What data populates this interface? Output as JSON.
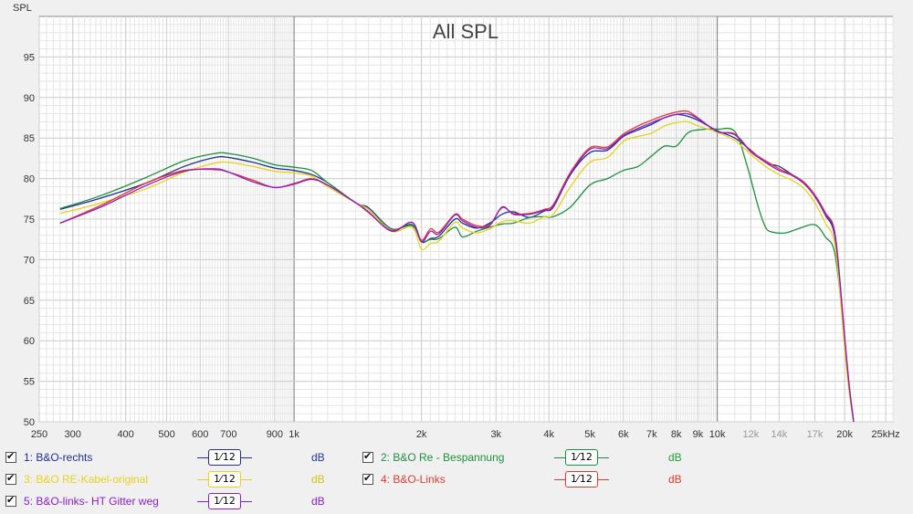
{
  "chart_data": {
    "type": "line",
    "title": "All SPL",
    "ylabel": "SPL",
    "xlabel": "",
    "x_scale": "log",
    "xlim": [
      250,
      26000
    ],
    "ylim": [
      50,
      100
    ],
    "x_ticks": [
      {
        "v": 250,
        "label": "250",
        "minor": false
      },
      {
        "v": 300,
        "label": "300",
        "minor": false
      },
      {
        "v": 400,
        "label": "400",
        "minor": false
      },
      {
        "v": 500,
        "label": "500",
        "minor": false
      },
      {
        "v": 600,
        "label": "600",
        "minor": false
      },
      {
        "v": 700,
        "label": "700",
        "minor": false
      },
      {
        "v": 900,
        "label": "900",
        "minor": false
      },
      {
        "v": 1000,
        "label": "1k",
        "minor": false
      },
      {
        "v": 2000,
        "label": "2k",
        "minor": false
      },
      {
        "v": 3000,
        "label": "3k",
        "minor": false
      },
      {
        "v": 4000,
        "label": "4k",
        "minor": false
      },
      {
        "v": 5000,
        "label": "5k",
        "minor": false
      },
      {
        "v": 6000,
        "label": "6k",
        "minor": false
      },
      {
        "v": 7000,
        "label": "7k",
        "minor": false
      },
      {
        "v": 8000,
        "label": "8k",
        "minor": false
      },
      {
        "v": 9000,
        "label": "9k",
        "minor": false
      },
      {
        "v": 10000,
        "label": "10k",
        "minor": false
      },
      {
        "v": 12000,
        "label": "12k",
        "minor": true
      },
      {
        "v": 14000,
        "label": "14k",
        "minor": true
      },
      {
        "v": 17000,
        "label": "17k",
        "minor": true
      },
      {
        "v": 20000,
        "label": "20k",
        "minor": false
      },
      {
        "v": 25000,
        "label": "25kHz",
        "minor": false
      }
    ],
    "y_ticks": [
      50,
      55,
      60,
      65,
      70,
      75,
      80,
      85,
      90,
      95
    ],
    "grid": true,
    "series": [
      {
        "name": "1: B&O-rechts",
        "color": "#1f2f8f",
        "x": [
          280,
          350,
          450,
          550,
          650,
          700,
          800,
          900,
          1000,
          1100,
          1200,
          1400,
          1500,
          1700,
          1900,
          2000,
          2100,
          2200,
          2400,
          2500,
          2700,
          2900,
          3100,
          3300,
          3600,
          3900,
          4100,
          4500,
          5000,
          5500,
          6000,
          6500,
          7000,
          7500,
          8000,
          8500,
          9000,
          10000,
          11000,
          12000,
          13000,
          14000,
          15000,
          16000,
          17000,
          18000,
          19000,
          20000,
          20500,
          21000
        ],
        "y": [
          76.2,
          77.6,
          79.5,
          81.5,
          82.6,
          82.6,
          82.0,
          81.3,
          81.0,
          80.5,
          79.5,
          77.0,
          76.4,
          73.8,
          74.3,
          72.2,
          72.6,
          72.9,
          75.0,
          74.5,
          73.9,
          74.5,
          75.6,
          75.9,
          75.2,
          76.0,
          76.5,
          80.5,
          83.2,
          83.5,
          85.2,
          86.0,
          86.7,
          87.5,
          87.9,
          87.7,
          87.2,
          85.9,
          85.0,
          83.5,
          82.0,
          81.5,
          80.5,
          79.5,
          77.8,
          75.5,
          72.5,
          60.0,
          54.0,
          50.0
        ]
      },
      {
        "name": "2: B&O Re - Bespannung",
        "color": "#1f8f3f",
        "x": [
          280,
          350,
          450,
          550,
          650,
          700,
          800,
          900,
          1000,
          1100,
          1200,
          1400,
          1500,
          1700,
          1900,
          2000,
          2100,
          2200,
          2400,
          2500,
          2700,
          2900,
          3100,
          3300,
          3600,
          3900,
          4100,
          4500,
          5000,
          5500,
          6000,
          6500,
          7000,
          7500,
          8000,
          8500,
          9000,
          10000,
          11000,
          11700,
          12500,
          13000,
          13500,
          14500,
          15500,
          17000,
          18000,
          19000,
          20000,
          20500,
          21000
        ],
        "y": [
          76.3,
          77.9,
          80.2,
          82.2,
          83.1,
          83.1,
          82.5,
          81.7,
          81.4,
          81.0,
          79.5,
          77.0,
          76.2,
          73.8,
          74.2,
          72.3,
          72.5,
          72.6,
          74.0,
          72.8,
          73.5,
          74.0,
          74.4,
          74.5,
          75.2,
          75.3,
          75.3,
          76.5,
          79.2,
          80.0,
          81.0,
          81.5,
          82.8,
          84.0,
          84.0,
          85.6,
          86.0,
          86.1,
          85.8,
          82.0,
          76.5,
          74.0,
          73.4,
          73.3,
          73.8,
          74.3,
          72.8,
          70.5,
          60.0,
          54.0,
          50.0
        ]
      },
      {
        "name": "3: B&O RE-Kabel-original",
        "color": "#e8d21a",
        "x": [
          280,
          350,
          450,
          550,
          650,
          700,
          800,
          900,
          1000,
          1100,
          1200,
          1400,
          1500,
          1700,
          1900,
          2000,
          2100,
          2200,
          2400,
          2500,
          2700,
          2900,
          3100,
          3300,
          3600,
          3900,
          4100,
          4500,
          5000,
          5500,
          6000,
          6500,
          7000,
          7500,
          8000,
          8500,
          9000,
          10000,
          11000,
          12000,
          13000,
          14000,
          15000,
          16000,
          17000,
          18000,
          19000,
          20000,
          20500,
          21000
        ],
        "y": [
          75.7,
          77.0,
          78.8,
          80.8,
          81.9,
          82.0,
          81.5,
          80.9,
          80.7,
          80.3,
          79.0,
          77.0,
          76.2,
          73.5,
          74.0,
          71.3,
          72.0,
          72.3,
          74.6,
          73.9,
          73.3,
          73.8,
          74.7,
          74.8,
          74.5,
          75.3,
          75.6,
          79.0,
          82.0,
          82.6,
          84.6,
          85.2,
          85.6,
          86.5,
          86.9,
          87.0,
          86.5,
          85.7,
          84.7,
          83.0,
          81.5,
          80.5,
          79.8,
          78.8,
          77.0,
          74.5,
          71.5,
          59.0,
          53.5,
          50.0
        ]
      },
      {
        "name": "4: B&O-Links",
        "color": "#e03a2f",
        "x": [
          280,
          350,
          450,
          550,
          650,
          700,
          800,
          900,
          1000,
          1100,
          1200,
          1400,
          1500,
          1700,
          1900,
          2000,
          2100,
          2200,
          2400,
          2500,
          2700,
          2900,
          3100,
          3300,
          3600,
          3900,
          4100,
          4500,
          5000,
          5500,
          6000,
          6500,
          7000,
          7500,
          8000,
          8500,
          9000,
          10000,
          11000,
          12000,
          13000,
          14000,
          15000,
          16000,
          17000,
          18000,
          19000,
          20000,
          20500,
          21000
        ],
        "y": [
          74.5,
          76.7,
          79.5,
          81.0,
          81.1,
          80.8,
          79.8,
          78.9,
          79.4,
          80.0,
          79.2,
          77.0,
          75.8,
          73.6,
          74.6,
          72.4,
          73.8,
          73.4,
          75.6,
          75.0,
          74.2,
          74.3,
          76.4,
          75.7,
          75.7,
          76.2,
          76.8,
          80.8,
          83.8,
          83.9,
          85.5,
          86.5,
          87.2,
          87.8,
          88.2,
          88.3,
          87.5,
          85.8,
          85.5,
          83.4,
          82.2,
          81.2,
          80.5,
          79.6,
          78.0,
          75.8,
          73.0,
          60.5,
          54.5,
          50.0
        ]
      },
      {
        "name": "5: B&O-links- HT Gitter weg",
        "color": "#8a1fc8",
        "x": [
          280,
          350,
          450,
          550,
          650,
          700,
          800,
          900,
          1000,
          1100,
          1200,
          1400,
          1500,
          1700,
          1900,
          2000,
          2100,
          2200,
          2400,
          2500,
          2700,
          2900,
          3100,
          3300,
          3600,
          3900,
          4100,
          4500,
          5000,
          5500,
          6000,
          6500,
          7000,
          7500,
          8000,
          8500,
          9000,
          10000,
          11000,
          12000,
          13000,
          14000,
          15000,
          16000,
          17000,
          18000,
          19000,
          20000,
          20500,
          21000
        ],
        "y": [
          74.5,
          76.5,
          79.2,
          80.9,
          81.2,
          80.8,
          79.6,
          78.9,
          79.3,
          79.9,
          79.2,
          77.0,
          75.9,
          73.5,
          74.6,
          72.2,
          73.5,
          73.2,
          75.5,
          74.8,
          74.0,
          74.2,
          76.5,
          75.6,
          75.6,
          76.1,
          76.6,
          80.6,
          83.6,
          83.7,
          85.3,
          86.2,
          86.9,
          87.5,
          87.9,
          88.0,
          87.4,
          85.8,
          85.4,
          83.3,
          82.0,
          81.0,
          80.4,
          79.4,
          77.8,
          75.6,
          72.8,
          60.3,
          54.3,
          50.0
        ]
      }
    ]
  },
  "legend": {
    "smoothing": "1⁄ 12",
    "unit": "dB",
    "items": [
      {
        "label": "1: B&O-rechts",
        "color": "#1f2f8f",
        "unit_color": "#1f3a9f"
      },
      {
        "label": "2: B&O Re - Bespannung",
        "color": "#1f8f3f",
        "unit_color": "#1f9f3f"
      },
      {
        "label": "3: B&O RE-Kabel-original",
        "color": "#e8d21a",
        "unit_color": "#d8c21a"
      },
      {
        "label": "4: B&O-Links",
        "color": "#e03a2f",
        "unit_color": "#e03a2f"
      },
      {
        "label": "5: B&O-links- HT Gitter weg",
        "color": "#8a1fc8",
        "unit_color": "#8a1fc8"
      }
    ]
  }
}
